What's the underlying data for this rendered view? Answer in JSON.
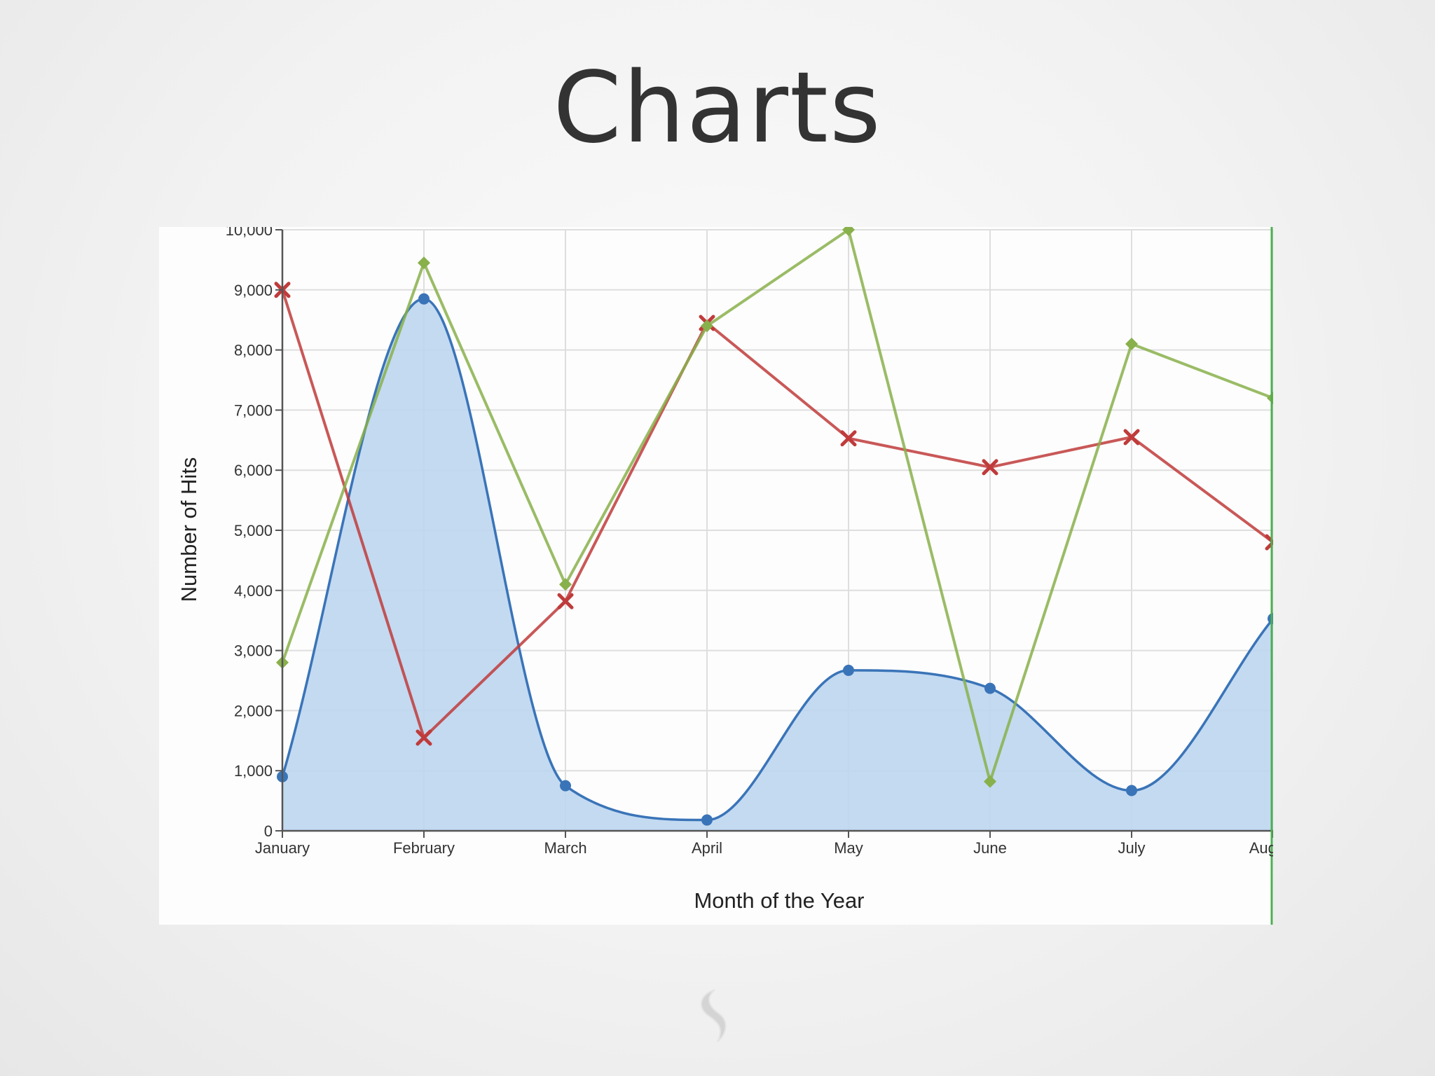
{
  "slide": {
    "title": "Charts"
  },
  "colors": {
    "hits_series_1": "#3a74b8",
    "hits_series_1_fill": "#bcd6ef",
    "hits_series_2": "#c03b3b",
    "hits_series_3": "#88b04b",
    "grid": "#dedede",
    "axis": "#555555",
    "right_edge": "#4caf50"
  },
  "icons": {
    "footer": "swirl-logo-icon"
  },
  "chart_data": {
    "type": "line",
    "categories": [
      "January",
      "February",
      "March",
      "April",
      "May",
      "June",
      "July",
      "August"
    ],
    "xlabel": "Month of the Year",
    "ylabel": "Number of Hits",
    "ylim": [
      0,
      10000
    ],
    "yticks": [
      0,
      1000,
      2000,
      3000,
      4000,
      5000,
      6000,
      7000,
      8000,
      9000,
      10000
    ],
    "ytick_labels": [
      "0",
      "1,000",
      "2,000",
      "3,000",
      "4,000",
      "5,000",
      "6,000",
      "7,000",
      "8,000",
      "9,000",
      "10,000"
    ],
    "grid": true,
    "series": [
      {
        "style": "area-spline",
        "marker": "circle",
        "color": "#3a74b8",
        "values": [
          900,
          8850,
          750,
          180,
          2670,
          2370,
          670,
          3530
        ]
      },
      {
        "style": "line",
        "marker": "x",
        "color": "#c03b3b",
        "values": [
          9000,
          1550,
          3820,
          8450,
          6530,
          6050,
          6550,
          4800
        ]
      },
      {
        "style": "line",
        "marker": "diamond",
        "color": "#88b04b",
        "values": [
          2800,
          9450,
          4100,
          8400,
          10000,
          820,
          8100,
          7200
        ]
      }
    ]
  }
}
